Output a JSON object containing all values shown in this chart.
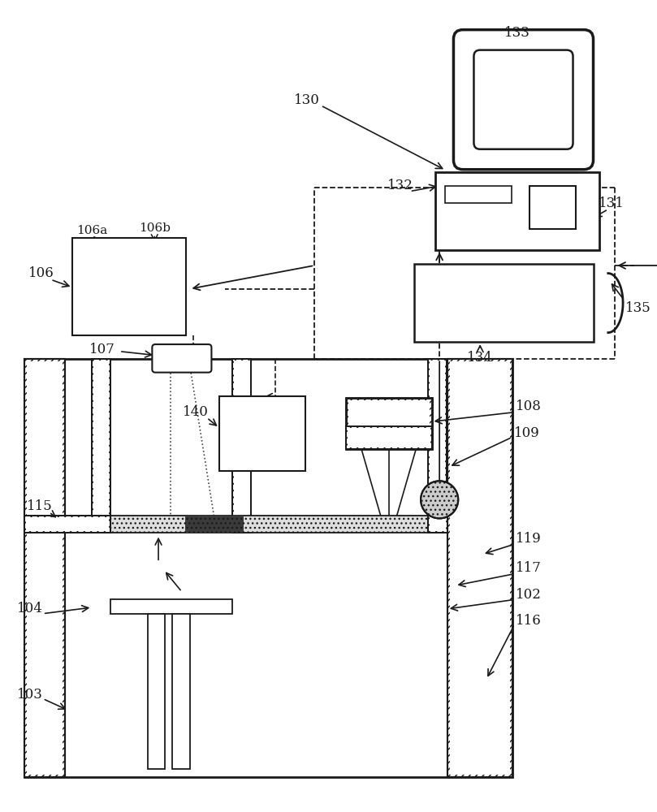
{
  "bg_color": "#ffffff",
  "lc": "#1a1a1a",
  "fig_w": 8.09,
  "fig_h": 10.0,
  "dpi": 100
}
